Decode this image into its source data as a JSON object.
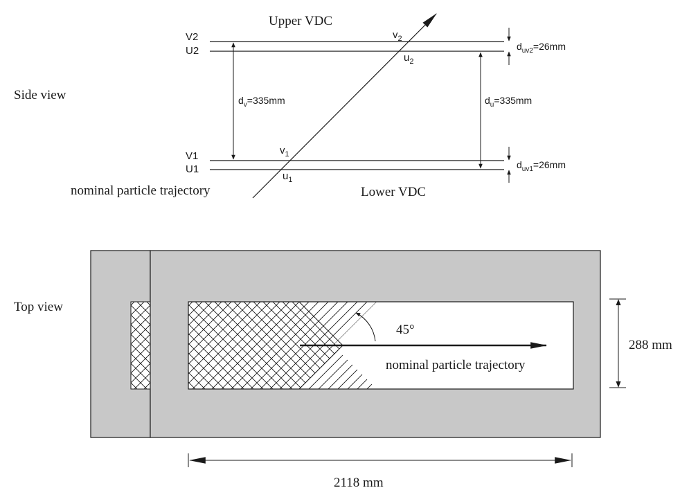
{
  "side_view": {
    "label": "Side view",
    "upper_title": "Upper VDC",
    "lower_title": "Lower VDC",
    "planes": {
      "v2": "V2",
      "u2": "U2",
      "v1": "V1",
      "u1": "U1"
    },
    "hits": {
      "v2": {
        "base": "v",
        "sub": "2"
      },
      "u2": {
        "base": "u",
        "sub": "2"
      },
      "v1": {
        "base": "v",
        "sub": "1"
      },
      "u1": {
        "base": "u",
        "sub": "1"
      }
    },
    "dv": {
      "base": "d",
      "sub": "v",
      "value": "=335mm"
    },
    "du": {
      "base": "d",
      "sub": "u",
      "value": "=335mm"
    },
    "duv2": {
      "base": "d",
      "sub": "uv2",
      "value": "=26mm"
    },
    "duv1": {
      "base": "d",
      "sub": "uv1",
      "value": "=26mm"
    },
    "trajectory_label": "nominal particle trajectory"
  },
  "top_view": {
    "label": "Top view",
    "angle_label": "45°",
    "trajectory_label": "nominal particle trajectory",
    "width_dim": "288 mm",
    "length_dim": "2118 mm",
    "frame_color": "#c8c8c8"
  }
}
